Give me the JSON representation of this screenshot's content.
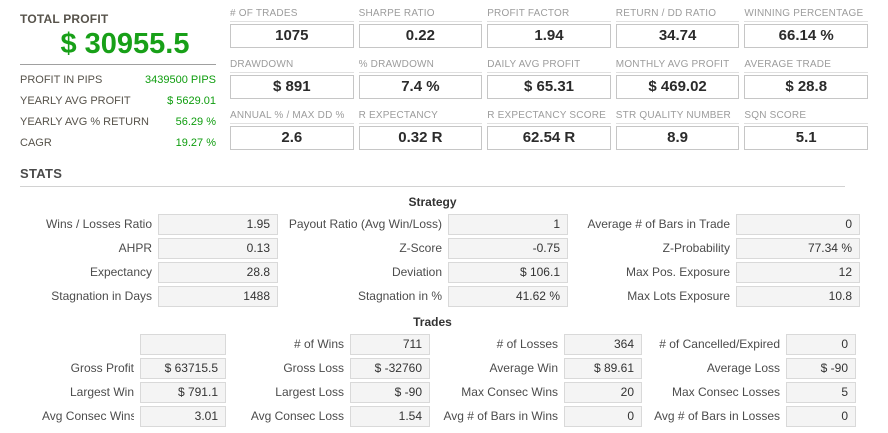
{
  "colors": {
    "accent_green": "#18a018",
    "box_bg": "#f4f4f4",
    "divider": "#d2d2d2"
  },
  "summary": {
    "title": "TOTAL PROFIT",
    "value": "$ 30955.5",
    "rows": [
      {
        "label": "PROFIT IN PIPS",
        "value": "3439500 PIPS"
      },
      {
        "label": "YEARLY AVG PROFIT",
        "value": "$ 5629.01"
      },
      {
        "label": "YEARLY AVG % RETURN",
        "value": "56.29 %"
      },
      {
        "label": "CAGR",
        "value": "19.27 %"
      }
    ]
  },
  "metrics": [
    {
      "label": "# OF TRADES",
      "value": "1075"
    },
    {
      "label": "SHARPE RATIO",
      "value": "0.22"
    },
    {
      "label": "PROFIT FACTOR",
      "value": "1.94"
    },
    {
      "label": "RETURN / DD RATIO",
      "value": "34.74"
    },
    {
      "label": "WINNING PERCENTAGE",
      "value": "66.14 %"
    },
    {
      "label": "DRAWDOWN",
      "value": "$ 891"
    },
    {
      "label": "% DRAWDOWN",
      "value": "7.4 %"
    },
    {
      "label": "DAILY AVG PROFIT",
      "value": "$ 65.31"
    },
    {
      "label": "MONTHLY AVG PROFIT",
      "value": "$ 469.02"
    },
    {
      "label": "AVERAGE TRADE",
      "value": "$ 28.8"
    },
    {
      "label": "ANNUAL % / MAX DD %",
      "value": "2.6"
    },
    {
      "label": "R EXPECTANCY",
      "value": "0.32 R"
    },
    {
      "label": "R EXPECTANCY SCORE",
      "value": "62.54 R"
    },
    {
      "label": "STR QUALITY NUMBER",
      "value": "8.9"
    },
    {
      "label": "SQN SCORE",
      "value": "5.1"
    }
  ],
  "stats_heading": "STATS",
  "strategy": {
    "title": "Strategy",
    "cells": [
      {
        "label": "Wins / Losses Ratio",
        "value": "1.95"
      },
      {
        "label": "Payout Ratio (Avg Win/Loss)",
        "value": "1"
      },
      {
        "label": "Average # of Bars in Trade",
        "value": "0"
      },
      {
        "label": "AHPR",
        "value": "0.13"
      },
      {
        "label": "Z-Score",
        "value": "-0.75"
      },
      {
        "label": "Z-Probability",
        "value": "77.34 %"
      },
      {
        "label": "Expectancy",
        "value": "28.8"
      },
      {
        "label": "Deviation",
        "value": "$ 106.1"
      },
      {
        "label": "Max Pos. Exposure",
        "value": "12"
      },
      {
        "label": "Stagnation in Days",
        "value": "1488"
      },
      {
        "label": "Stagnation in %",
        "value": "41.62 %"
      },
      {
        "label": "Max Lots Exposure",
        "value": "10.8"
      }
    ]
  },
  "trades": {
    "title": "Trades",
    "cells": [
      {
        "label": "",
        "value": ""
      },
      {
        "label": "# of Wins",
        "value": "711"
      },
      {
        "label": "# of Losses",
        "value": "364"
      },
      {
        "label": "# of Cancelled/Expired",
        "value": "0"
      },
      {
        "label": "Gross Profit",
        "value": "$ 63715.5"
      },
      {
        "label": "Gross Loss",
        "value": "$ -32760"
      },
      {
        "label": "Average Win",
        "value": "$ 89.61"
      },
      {
        "label": "Average Loss",
        "value": "$ -90"
      },
      {
        "label": "Largest Win",
        "value": "$ 791.1"
      },
      {
        "label": "Largest Loss",
        "value": "$ -90"
      },
      {
        "label": "Max Consec Wins",
        "value": "20"
      },
      {
        "label": "Max Consec Losses",
        "value": "5"
      },
      {
        "label": "Avg Consec Wins",
        "value": "3.01"
      },
      {
        "label": "Avg Consec Loss",
        "value": "1.54"
      },
      {
        "label": "Avg # of Bars in Wins",
        "value": "0"
      },
      {
        "label": "Avg # of Bars in Losses",
        "value": "0"
      }
    ]
  }
}
